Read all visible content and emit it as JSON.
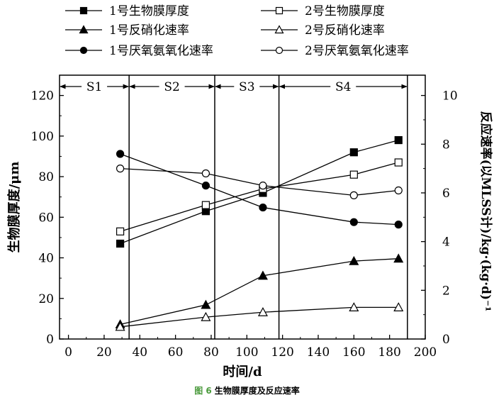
{
  "chart_data": {
    "type": "line",
    "xlabel": "时间/d",
    "ylabel": "生物膜厚度/μm",
    "y2label": "反应速率(以MLSS计)/kg·(kg·d)⁻¹",
    "xlim": [
      -5,
      200
    ],
    "ylim": [
      0,
      130
    ],
    "y2lim": [
      0,
      10.833
    ],
    "x_ticks": [
      0,
      20,
      40,
      60,
      80,
      100,
      120,
      140,
      160,
      180,
      200
    ],
    "y_ticks": [
      0,
      20,
      40,
      60,
      80,
      100,
      120
    ],
    "y2_ticks": [
      0,
      2,
      4,
      6,
      8,
      10
    ],
    "grid": false,
    "legend_position": "top",
    "phases": [
      {
        "label": "S1",
        "from": -5,
        "to": 34
      },
      {
        "label": "S2",
        "from": 34,
        "to": 82
      },
      {
        "label": "S3",
        "from": 82,
        "to": 118
      },
      {
        "label": "S4",
        "from": 118,
        "to": 190
      }
    ],
    "series": [
      {
        "name": "1号生物膜厚度",
        "axis": "left",
        "marker": "square",
        "filled": true,
        "x": [
          29,
          77,
          109,
          160,
          185
        ],
        "values": [
          47,
          63,
          72,
          92,
          98
        ]
      },
      {
        "name": "2号生物膜厚度",
        "axis": "left",
        "marker": "square",
        "filled": false,
        "x": [
          29,
          77,
          109,
          160,
          185
        ],
        "values": [
          53,
          66,
          74,
          81,
          87
        ]
      },
      {
        "name": "1号反硝化速率",
        "axis": "right",
        "marker": "triangle",
        "filled": true,
        "x": [
          29,
          77,
          109,
          160,
          185
        ],
        "values": [
          0.6,
          1.4,
          2.6,
          3.2,
          3.3
        ]
      },
      {
        "name": "2号反硝化速率",
        "axis": "right",
        "marker": "triangle",
        "filled": false,
        "x": [
          29,
          77,
          109,
          160,
          185
        ],
        "values": [
          0.5,
          0.9,
          1.1,
          1.3,
          1.3
        ]
      },
      {
        "name": "1号厌氧氨氧化速率",
        "axis": "right",
        "marker": "circle",
        "filled": true,
        "x": [
          29,
          77,
          109,
          160,
          185
        ],
        "values": [
          7.6,
          6.3,
          5.4,
          4.8,
          4.7
        ]
      },
      {
        "name": "2号厌氧氨氧化速率",
        "axis": "right",
        "marker": "circle",
        "filled": false,
        "x": [
          29,
          77,
          109,
          160,
          185
        ],
        "values": [
          7.0,
          6.8,
          6.3,
          5.9,
          6.1
        ]
      }
    ]
  },
  "caption": {
    "figure_number": "图 6",
    "text": "生物膜厚度及反应速率"
  }
}
